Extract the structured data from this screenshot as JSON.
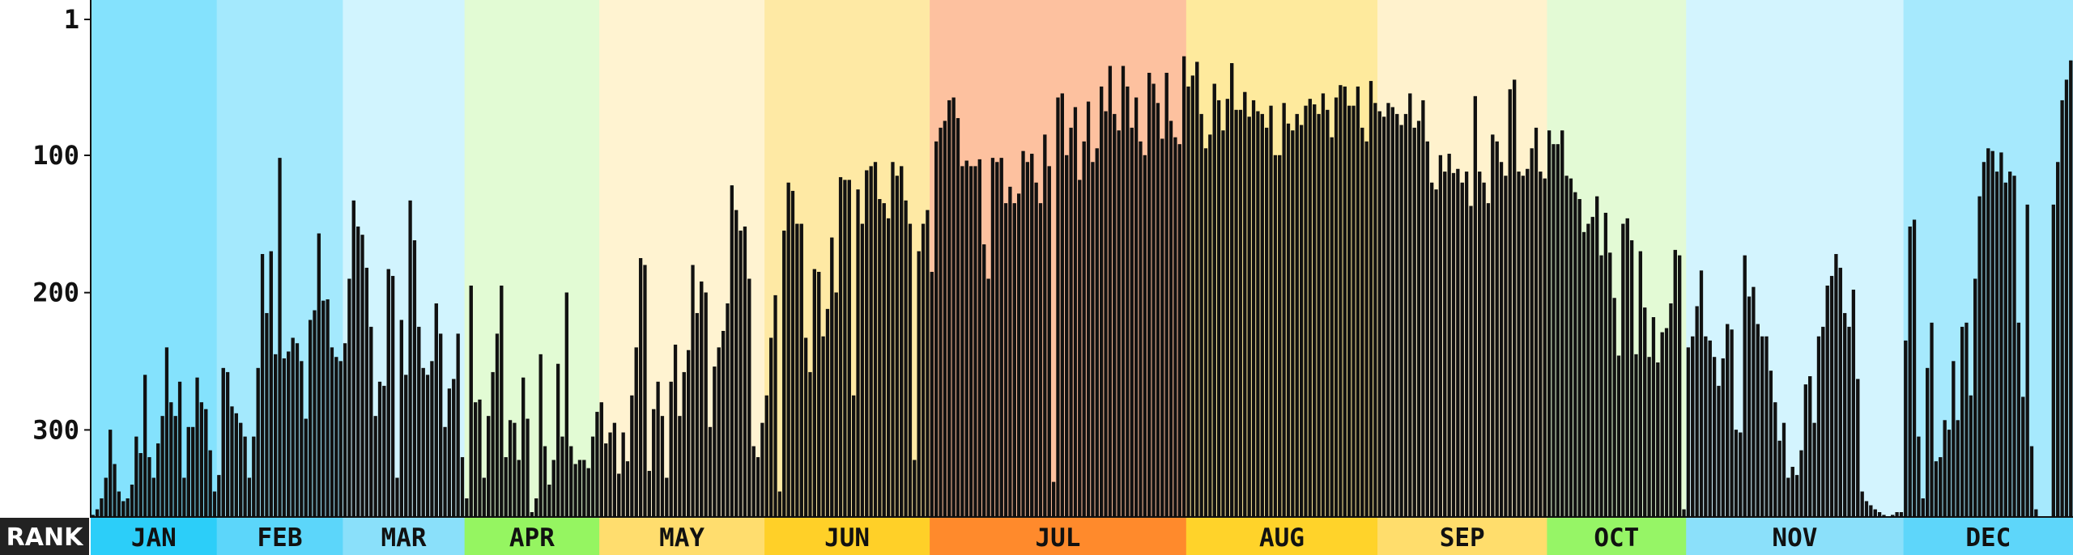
{
  "chart_data": {
    "type": "bar",
    "ylabel": "RANK",
    "yticks": [
      1,
      100,
      200,
      300
    ],
    "ylim": [
      366,
      1
    ],
    "grid": false,
    "months": [
      {
        "label": "JAN",
        "color": "#84e2fd",
        "band_color": "#2ccef9"
      },
      {
        "label": "FEB",
        "color": "#a4e9fd",
        "band_color": "#5cd6fa"
      },
      {
        "label": "MAR",
        "color": "#d1f4fe",
        "band_color": "#8ae0fa"
      },
      {
        "label": "APR",
        "color": "#e2fbd4",
        "band_color": "#95f561"
      },
      {
        "label": "MAY",
        "color": "#fff3d1",
        "band_color": "#ffdd6e"
      },
      {
        "label": "JUN",
        "color": "#fee9a4",
        "band_color": "#ffd028"
      },
      {
        "label": "JUL",
        "color": "#fdc19f",
        "band_color": "#ff8a2c"
      },
      {
        "label": "AUG",
        "color": "#feea9d",
        "band_color": "#ffd32a"
      },
      {
        "label": "SEP",
        "color": "#fff2cd",
        "band_color": "#ffdd6c"
      },
      {
        "label": "OCT",
        "color": "#e3fad5",
        "band_color": "#96f566"
      },
      {
        "label": "NOV",
        "color": "#d3f4fe",
        "band_color": "#8be0fa"
      },
      {
        "label": "DEC",
        "color": "#a6e9fd",
        "band_color": "#5ed6fa"
      }
    ],
    "series": [
      {
        "month": "JAN",
        "values": [
          362,
          358,
          350,
          335,
          300,
          325,
          345,
          352,
          350,
          340,
          305,
          317,
          260,
          320,
          335,
          310,
          290,
          240,
          280,
          290,
          265,
          335,
          298,
          298,
          262,
          280,
          285,
          315,
          345
        ]
      },
      {
        "month": "FEB",
        "values": [
          333,
          255,
          258,
          283,
          288,
          295,
          305,
          335,
          305,
          255,
          172,
          215,
          170,
          245,
          102,
          248,
          243,
          233,
          237,
          250,
          292,
          220,
          213,
          157,
          206,
          205,
          240,
          247,
          250
        ]
      },
      {
        "month": "MAR",
        "values": [
          237,
          190,
          133,
          152,
          158,
          182,
          225,
          290,
          265,
          268,
          183,
          188,
          335,
          220,
          260,
          133,
          162,
          225,
          255,
          260,
          250,
          208,
          230,
          298,
          270,
          263,
          230,
          320
        ]
      },
      {
        "month": "APR",
        "values": [
          350,
          195,
          280,
          278,
          335,
          290,
          258,
          230,
          195,
          320,
          293,
          295,
          322,
          262,
          292,
          360,
          350,
          245,
          312,
          340,
          322,
          252,
          305,
          200,
          312,
          325,
          322,
          322,
          328,
          305,
          287
        ]
      },
      {
        "month": "MAY",
        "values": [
          280,
          310,
          302,
          295,
          332,
          302,
          323,
          275,
          240,
          175,
          180,
          330,
          285,
          265,
          290,
          335,
          265,
          238,
          290,
          258,
          242,
          180,
          215,
          192,
          200,
          298,
          254,
          240,
          228,
          208,
          122,
          140,
          155,
          152,
          190,
          312,
          320,
          295
        ]
      },
      {
        "month": "JUN",
        "values": [
          275,
          233,
          202,
          345,
          155,
          120,
          126,
          150,
          150,
          233,
          258,
          183,
          185,
          232,
          212,
          160,
          200,
          116,
          118,
          118,
          275,
          125,
          150,
          111,
          108,
          105,
          132,
          135,
          146,
          105,
          115,
          108,
          133,
          150,
          322,
          170,
          150,
          140
        ]
      },
      {
        "month": "JUL",
        "values": [
          185,
          90,
          80,
          75,
          60,
          58,
          73,
          108,
          104,
          108,
          108,
          103,
          165,
          190,
          102,
          105,
          102,
          135,
          123,
          135,
          128,
          97,
          105,
          99,
          120,
          135,
          85,
          108,
          338,
          58,
          55,
          100,
          80,
          65,
          118,
          90,
          61,
          105,
          95,
          50,
          68,
          35,
          70,
          82,
          35,
          50,
          80,
          58,
          90,
          100,
          40,
          48,
          62,
          88,
          40,
          75,
          87,
          92,
          28
        ]
      },
      {
        "month": "AUG",
        "values": [
          50,
          42,
          32,
          70,
          95,
          85,
          48,
          60,
          82,
          59,
          33,
          67,
          67,
          54,
          72,
          60,
          68,
          70,
          80,
          64,
          100,
          100,
          62,
          77,
          82,
          70,
          78,
          64,
          59,
          63,
          70,
          55,
          67,
          87,
          58,
          49,
          50,
          64,
          64,
          50,
          80,
          90,
          46,
          62
        ]
      },
      {
        "month": "SEP",
        "values": [
          68,
          72,
          62,
          65,
          70,
          78,
          70,
          55,
          80,
          75,
          60,
          90,
          120,
          125,
          100,
          112,
          99,
          113,
          110,
          120,
          112,
          137,
          57,
          112,
          120,
          135,
          85,
          90,
          105,
          115,
          52,
          45,
          112,
          115,
          110,
          95,
          80,
          112,
          117
        ]
      },
      {
        "month": "OCT",
        "values": [
          82,
          92,
          92,
          82,
          115,
          117,
          127,
          132,
          156,
          150,
          145,
          130,
          173,
          142,
          171,
          204,
          246,
          150,
          146,
          162,
          245,
          170,
          211,
          247,
          218,
          251,
          229,
          226,
          208,
          169,
          173,
          358
        ]
      },
      {
        "month": "NOV",
        "values": [
          240,
          232,
          210,
          184,
          232,
          235,
          247,
          268,
          248,
          223,
          227,
          300,
          302,
          173,
          203,
          196,
          223,
          232,
          232,
          257,
          280,
          308,
          295,
          335,
          327,
          333,
          315,
          267,
          261,
          295,
          232,
          225,
          195,
          188,
          172,
          182,
          215,
          225,
          198,
          263,
          345,
          352,
          355,
          358,
          360,
          362,
          363,
          362,
          360,
          360
        ]
      },
      {
        "month": "DEC",
        "values": [
          235,
          152,
          147,
          305,
          350,
          255,
          222,
          323,
          320,
          293,
          300,
          250,
          293,
          225,
          222,
          275,
          190,
          130,
          105,
          95,
          97,
          112,
          98,
          120,
          112,
          115,
          222,
          276,
          136,
          312,
          358,
          364,
          365,
          364,
          136,
          105,
          60,
          45,
          31
        ]
      }
    ]
  }
}
